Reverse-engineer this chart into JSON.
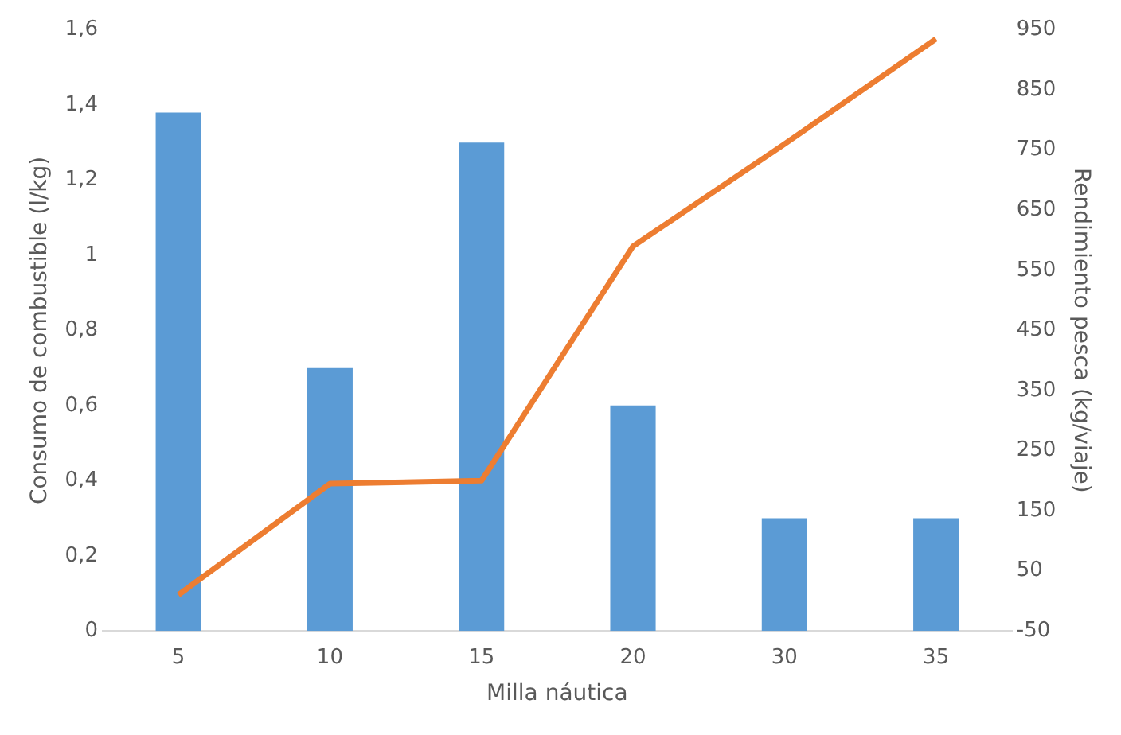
{
  "chart_data": {
    "type": "bar",
    "xlabel": "Milla náutica",
    "ylabel": "Consumo de combustible (l/kg)",
    "y2label": "Rendimiento pesca (kg/viaje)",
    "categories": [
      "5",
      "10",
      "15",
      "20",
      "30",
      "35"
    ],
    "series": [
      {
        "color": "#5b9bd5",
        "values": [
          1.38,
          0.7,
          1.3,
          0.6,
          0.3,
          0.3
        ]
      },
      {
        "type": "line",
        "axis": "y2",
        "color": "#ed7d31",
        "values": [
          10,
          195,
          200,
          590,
          760,
          935
        ],
        "marker": "none"
      }
    ],
    "ylim": [
      0,
      1.6
    ],
    "yticks": [
      0,
      {
        "value": 0.2,
        "label": "0,2"
      },
      {
        "value": 0.4,
        "label": "0,4"
      },
      {
        "value": 0.6,
        "label": "0,6"
      },
      {
        "value": 0.8,
        "label": "0,8"
      },
      1,
      {
        "value": 1.2,
        "label": "1,2"
      },
      {
        "value": 1.4,
        "label": "1,4"
      },
      {
        "value": 1.6,
        "label": "1,6"
      }
    ],
    "y2lim": [
      -50,
      950
    ],
    "y2ticks": [
      -50,
      50,
      150,
      250,
      350,
      450,
      550,
      650,
      750,
      850,
      950
    ],
    "grid": false,
    "legend": false
  }
}
